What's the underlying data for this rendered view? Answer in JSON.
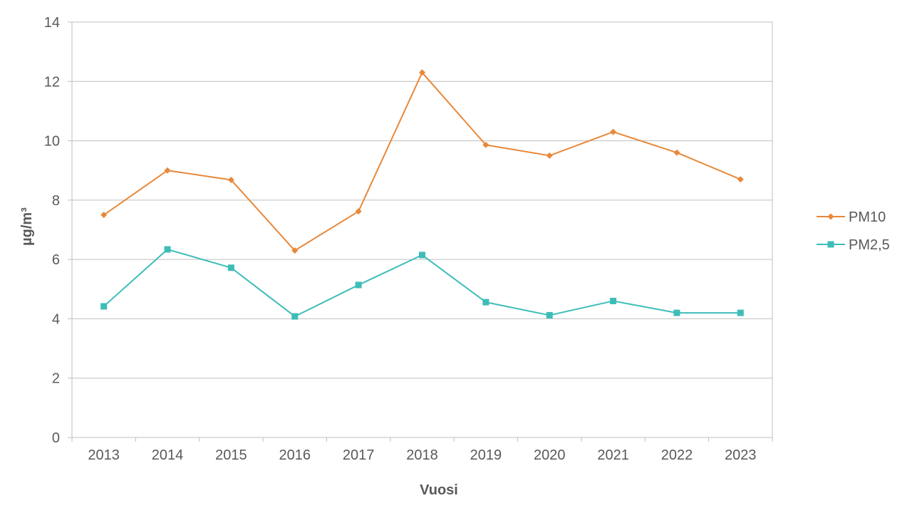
{
  "chart_data": {
    "type": "line",
    "title": "",
    "xlabel": "Vuosi",
    "ylabel": "µg/m³",
    "categories": [
      "2013",
      "2014",
      "2015",
      "2016",
      "2017",
      "2018",
      "2019",
      "2020",
      "2021",
      "2022",
      "2023"
    ],
    "ylim": [
      0,
      14
    ],
    "yticks": [
      "0",
      "2",
      "4",
      "6",
      "8",
      "10",
      "12",
      "14"
    ],
    "grid": true,
    "legend_position": "right",
    "series": [
      {
        "name": "PM10",
        "color": "#E8883A",
        "marker": "diamond",
        "values": [
          7.5,
          9.0,
          8.68,
          6.3,
          7.62,
          12.3,
          9.86,
          9.5,
          10.3,
          9.6,
          8.7
        ]
      },
      {
        "name": "PM2,5",
        "color": "#3DBDB8",
        "marker": "square",
        "values": [
          4.42,
          6.34,
          5.72,
          4.08,
          5.14,
          6.15,
          4.56,
          4.12,
          4.6,
          4.2,
          4.2
        ]
      }
    ]
  }
}
